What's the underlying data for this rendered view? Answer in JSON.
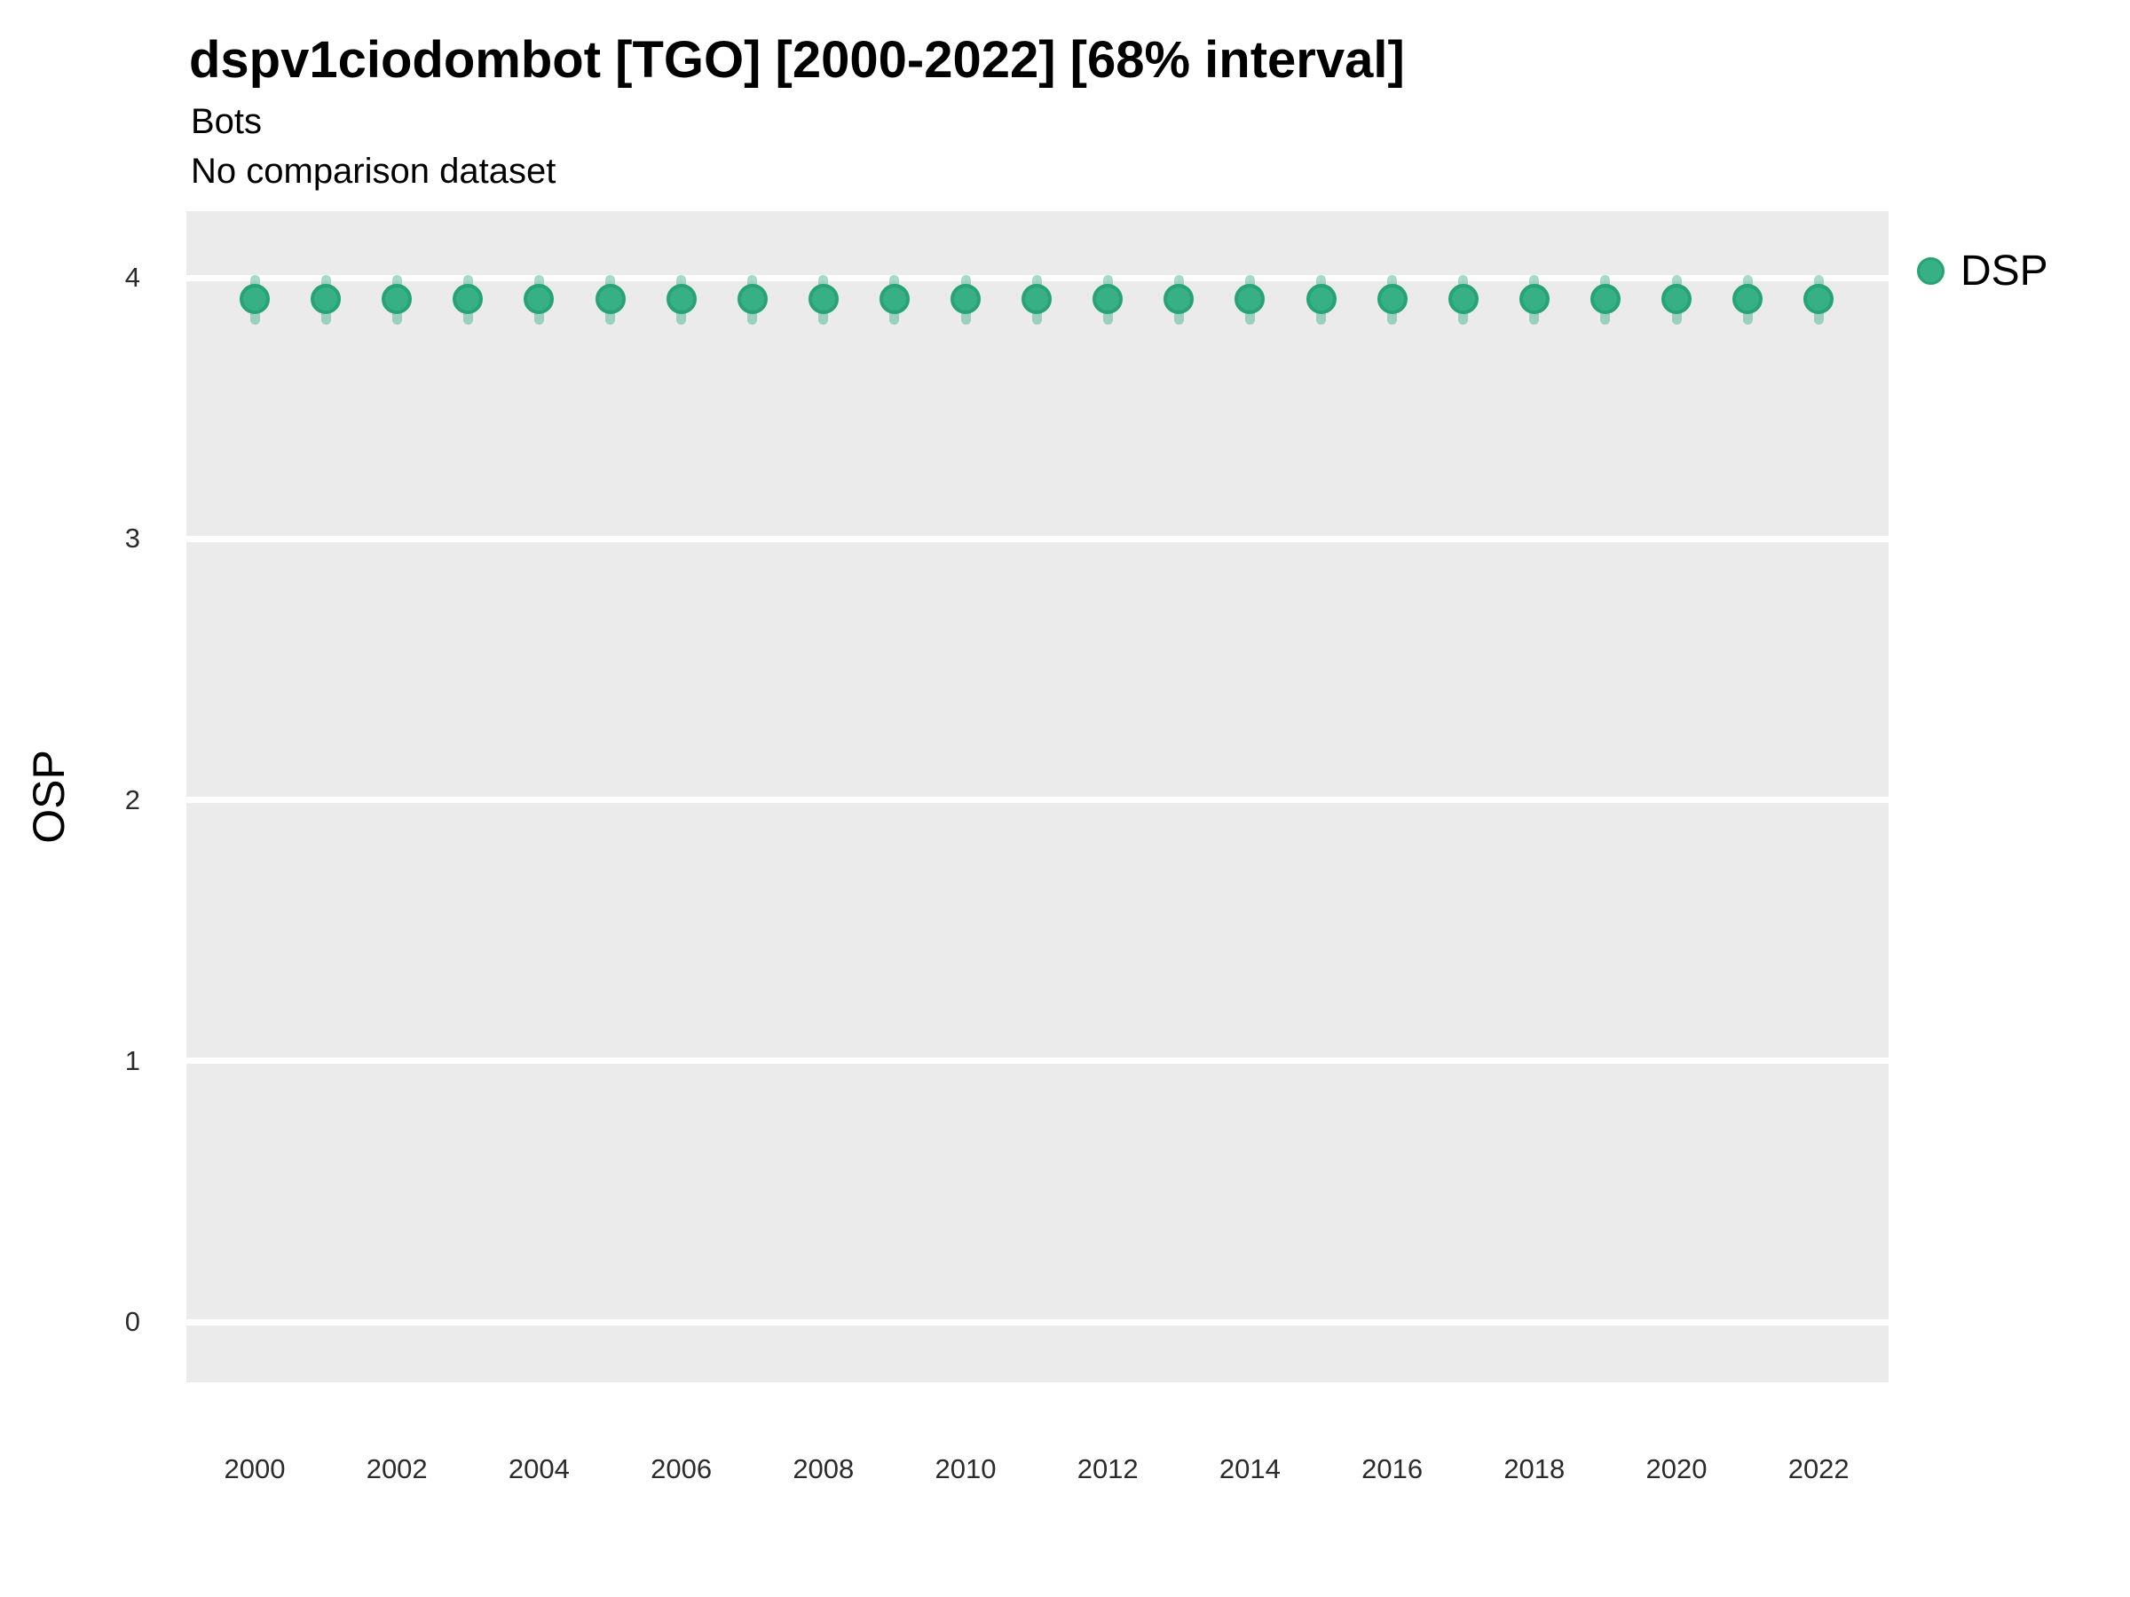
{
  "title": "dspv1ciodombot [TGO] [2000-2022] [68% interval]",
  "subtitle": "Bots",
  "comparison_note": "No comparison dataset",
  "y_axis": {
    "label": "OSP",
    "ticks": [
      0,
      1,
      2,
      3,
      4
    ]
  },
  "x_axis": {
    "ticks": [
      2000,
      2002,
      2004,
      2006,
      2008,
      2010,
      2012,
      2014,
      2016,
      2018,
      2020,
      2022
    ]
  },
  "legend": {
    "label": "DSP",
    "position": "right"
  },
  "colors": {
    "panel_background": "#EBEBEB",
    "gridline": "#FFFFFF",
    "marker_fill": "#38B085",
    "marker_stroke": "#26A377",
    "interval_bar": "rgba(56,176,133,0.45)",
    "text": "#000000",
    "tick_text": "#2b2b2b"
  },
  "chart_data": {
    "type": "scatter",
    "title": "dspv1ciodombot [TGO] [2000-2022] [68% interval]",
    "subtitle": "Bots",
    "note": "No comparison dataset",
    "xlabel": "",
    "ylabel": "OSP",
    "xlim": [
      1999,
      2023.9
    ],
    "ylim": [
      -0.25,
      4.25
    ],
    "grid": "horizontal-major-only",
    "legend_position": "right",
    "interval_level": "68%",
    "series": [
      {
        "name": "DSP",
        "marker": "circle-with-vertical-interval-bar",
        "points": [
          {
            "year": 2000,
            "value": 3.92,
            "low": 3.84,
            "high": 3.99
          },
          {
            "year": 2001,
            "value": 3.92,
            "low": 3.84,
            "high": 3.99
          },
          {
            "year": 2002,
            "value": 3.92,
            "low": 3.84,
            "high": 3.99
          },
          {
            "year": 2003,
            "value": 3.92,
            "low": 3.84,
            "high": 3.99
          },
          {
            "year": 2004,
            "value": 3.92,
            "low": 3.84,
            "high": 3.99
          },
          {
            "year": 2005,
            "value": 3.92,
            "low": 3.84,
            "high": 3.99
          },
          {
            "year": 2006,
            "value": 3.92,
            "low": 3.84,
            "high": 3.99
          },
          {
            "year": 2007,
            "value": 3.92,
            "low": 3.84,
            "high": 3.99
          },
          {
            "year": 2008,
            "value": 3.92,
            "low": 3.84,
            "high": 3.99
          },
          {
            "year": 2009,
            "value": 3.92,
            "low": 3.84,
            "high": 3.99
          },
          {
            "year": 2010,
            "value": 3.92,
            "low": 3.84,
            "high": 3.99
          },
          {
            "year": 2011,
            "value": 3.92,
            "low": 3.84,
            "high": 3.99
          },
          {
            "year": 2012,
            "value": 3.92,
            "low": 3.84,
            "high": 3.99
          },
          {
            "year": 2013,
            "value": 3.92,
            "low": 3.84,
            "high": 3.99
          },
          {
            "year": 2014,
            "value": 3.92,
            "low": 3.84,
            "high": 3.99
          },
          {
            "year": 2015,
            "value": 3.92,
            "low": 3.84,
            "high": 3.99
          },
          {
            "year": 2016,
            "value": 3.92,
            "low": 3.84,
            "high": 3.99
          },
          {
            "year": 2017,
            "value": 3.92,
            "low": 3.84,
            "high": 3.99
          },
          {
            "year": 2018,
            "value": 3.92,
            "low": 3.84,
            "high": 3.99
          },
          {
            "year": 2019,
            "value": 3.92,
            "low": 3.84,
            "high": 3.99
          },
          {
            "year": 2020,
            "value": 3.92,
            "low": 3.84,
            "high": 3.99
          },
          {
            "year": 2021,
            "value": 3.92,
            "low": 3.84,
            "high": 3.99
          },
          {
            "year": 2022,
            "value": 3.92,
            "low": 3.84,
            "high": 3.99
          }
        ]
      }
    ]
  }
}
